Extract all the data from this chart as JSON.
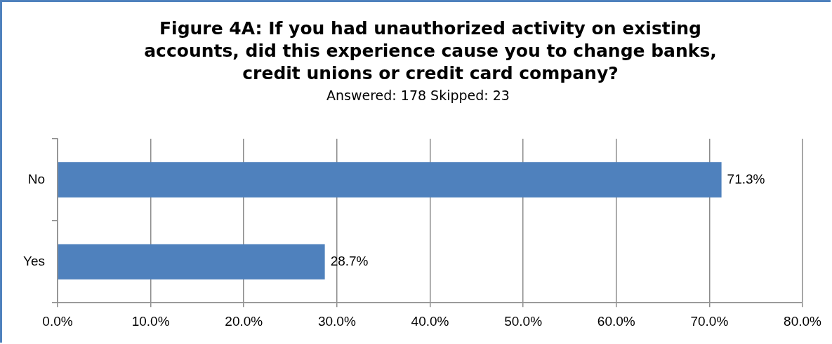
{
  "chart_data": {
    "type": "bar",
    "orientation": "horizontal",
    "title": "Figure 4A:  If you had unauthorized activity on existing accounts, did this experience cause you to change banks, credit unions or credit card company?",
    "subtitle": "Answered:   178    Skipped: 23",
    "categories": [
      "No",
      "Yes"
    ],
    "values": [
      71.3,
      28.7
    ],
    "value_labels": [
      "71.3%",
      "28.7%"
    ],
    "color": "#4f81bd",
    "xlim": [
      0,
      80
    ],
    "xticks": [
      {
        "value": 0,
        "label": "0.0%"
      },
      {
        "value": 10,
        "label": "10.0%"
      },
      {
        "value": 20,
        "label": "20.0%"
      },
      {
        "value": 30,
        "label": "30.0%"
      },
      {
        "value": 40,
        "label": "40.0%"
      },
      {
        "value": 50,
        "label": "50.0%"
      },
      {
        "value": 60,
        "label": "60.0%"
      },
      {
        "value": 70,
        "label": "70.0%"
      },
      {
        "value": 80,
        "label": "80.0%"
      }
    ],
    "grid": "x",
    "legend": false
  }
}
